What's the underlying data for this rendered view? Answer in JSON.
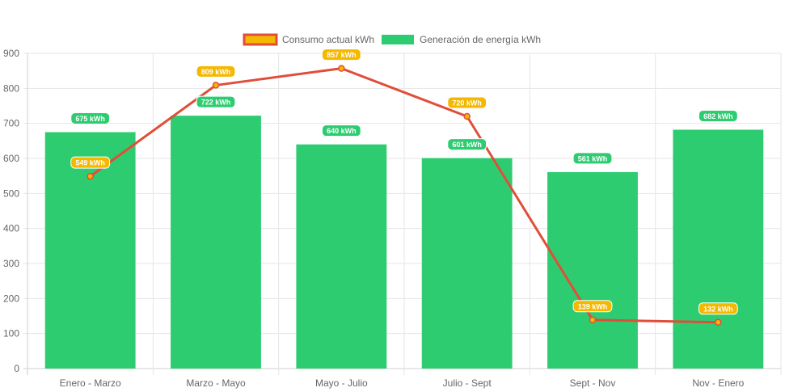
{
  "chart_data": {
    "type": "bar",
    "categories": [
      "Enero - Marzo",
      "Marzo - Mayo",
      "Mayo - Julio",
      "Julio - Sept",
      "Sept - Nov",
      "Nov - Enero"
    ],
    "series": [
      {
        "name": "Consumo actual kWh",
        "type": "line",
        "values": [
          549,
          809,
          857,
          720,
          139,
          132
        ],
        "labels": [
          "549 kWh",
          "809 kWh",
          "857 kWh",
          "720 kWh",
          "139 kWh",
          "132 kWh"
        ],
        "color": "#e04e39",
        "label_color": "#f5b800"
      },
      {
        "name": "Generación de energía kWh",
        "type": "bar",
        "values": [
          675,
          722,
          640,
          601,
          561,
          682
        ],
        "labels": [
          "675 kWh",
          "722 kWh",
          "640 kWh",
          "601 kWh",
          "561 kWh",
          "682 kWh"
        ],
        "color": "#2ecc71",
        "label_color": "#2ecc71"
      }
    ],
    "yticks": [
      "0",
      "100",
      "200",
      "300",
      "400",
      "500",
      "600",
      "700",
      "800",
      "900"
    ],
    "ylim": [
      0,
      900
    ],
    "grid": true,
    "legend": "top-center"
  }
}
